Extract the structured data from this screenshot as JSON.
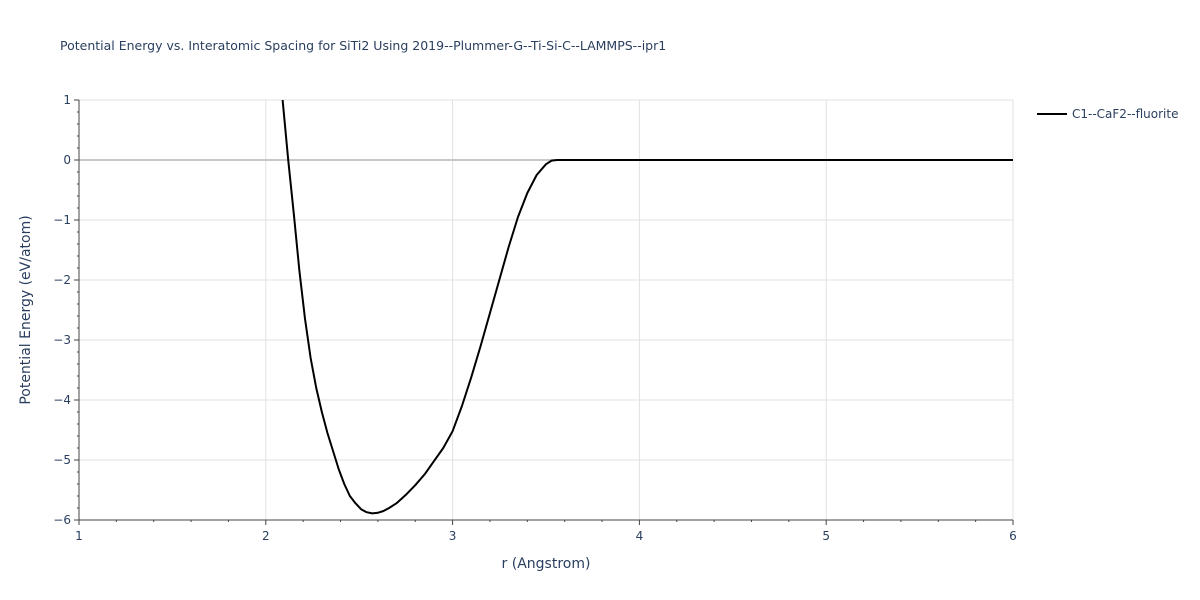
{
  "chart_data": {
    "type": "line",
    "title": "Potential Energy vs. Interatomic Spacing for SiTi2 Using 2019--Plummer-G--Ti-Si-C--LAMMPS--ipr1",
    "xlabel": "r (Angstrom)",
    "ylabel": "Potential Energy (eV/atom)",
    "xlim": [
      1,
      6
    ],
    "ylim": [
      -6,
      1
    ],
    "x_ticks": [
      1,
      2,
      3,
      4,
      5,
      6
    ],
    "x_tick_labels": [
      "1",
      "2",
      "3",
      "4",
      "5",
      "6"
    ],
    "y_ticks": [
      -6,
      -5,
      -4,
      -3,
      -2,
      -1,
      0,
      1
    ],
    "y_tick_labels": [
      "−6",
      "−5",
      "−4",
      "−3",
      "−2",
      "−1",
      "0",
      "1"
    ],
    "grid": true,
    "legend_position": "top-right",
    "series": [
      {
        "name": "C1--CaF2--fluorite",
        "color": "#000000",
        "x": [
          2.09,
          2.12,
          2.15,
          2.18,
          2.21,
          2.24,
          2.27,
          2.3,
          2.33,
          2.36,
          2.39,
          2.42,
          2.45,
          2.48,
          2.51,
          2.54,
          2.57,
          2.6,
          2.63,
          2.66,
          2.7,
          2.75,
          2.8,
          2.85,
          2.9,
          2.95,
          3.0,
          3.05,
          3.1,
          3.15,
          3.2,
          3.25,
          3.3,
          3.35,
          3.4,
          3.45,
          3.5,
          3.53,
          3.56,
          3.6,
          4.0,
          4.5,
          5.0,
          5.5,
          6.0
        ],
        "y": [
          1.0,
          0.0,
          -0.9,
          -1.85,
          -2.65,
          -3.3,
          -3.8,
          -4.2,
          -4.55,
          -4.85,
          -5.15,
          -5.4,
          -5.6,
          -5.72,
          -5.82,
          -5.87,
          -5.89,
          -5.88,
          -5.85,
          -5.8,
          -5.72,
          -5.58,
          -5.42,
          -5.24,
          -5.02,
          -4.8,
          -4.52,
          -4.1,
          -3.62,
          -3.1,
          -2.55,
          -2.0,
          -1.45,
          -0.95,
          -0.55,
          -0.25,
          -0.07,
          -0.01,
          0.0,
          0.0,
          0.0,
          0.0,
          0.0,
          0.0,
          0.0
        ]
      }
    ]
  }
}
